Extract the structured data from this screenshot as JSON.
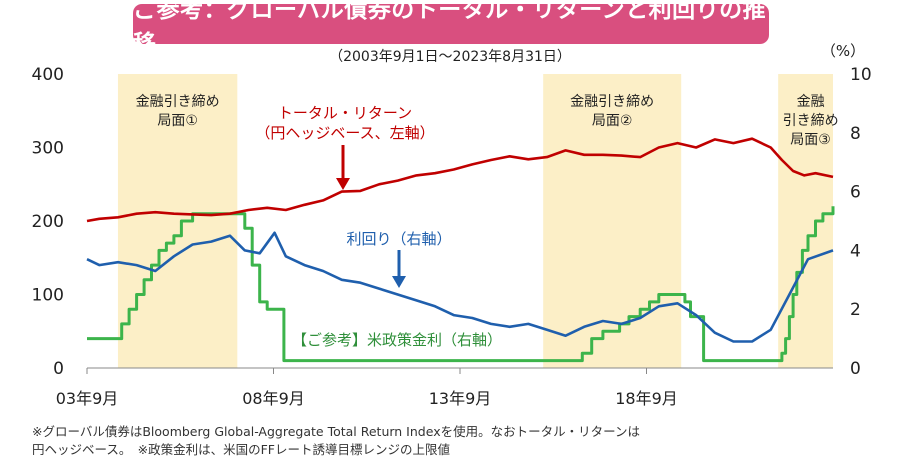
{
  "title": "ご参考：グローバル債券のトータル・リターンと利回りの推移",
  "subtitle": "（2003年9月1日～2023年8月31日）",
  "footnote_line1": "※グローバル債券はBloomberg Global-Aggregate Total Return Indexを使用。なおトータル・リターンは",
  "footnote_line2": "円ヘッジベース。　※政策金利は、米国のFFレート誘導目標レンジの上限値",
  "colors": {
    "total_return": "#c00000",
    "yield": "#1f5fad",
    "policy_rate": "#3cb44b",
    "shade": "#fcefc7",
    "title_bg": "#d94f7f"
  },
  "chart_data": {
    "type": "line",
    "left_axis": {
      "ylim": [
        0,
        400
      ],
      "ticks": [
        "0",
        "100",
        "200",
        "300",
        "400"
      ]
    },
    "right_axis": {
      "unit_label": "（%）",
      "ylim": [
        0,
        10
      ],
      "ticks": [
        "0",
        "2",
        "4",
        "6",
        "8",
        "10"
      ]
    },
    "x_axis": {
      "xlim": [
        2003.67,
        2023.67
      ],
      "ticks": [
        {
          "x": 2003.67,
          "label": "03年9月"
        },
        {
          "x": 2008.67,
          "label": "08年9月"
        },
        {
          "x": 2013.67,
          "label": "13年9月"
        },
        {
          "x": 2018.67,
          "label": "18年9月"
        }
      ]
    },
    "shaded_regions": [
      {
        "x0": 2004.5,
        "x1": 2007.7,
        "label": [
          "金融引き締め",
          "局面①"
        ]
      },
      {
        "x0": 2015.9,
        "x1": 2019.6,
        "label": [
          "金融引き締め",
          "局面②"
        ]
      },
      {
        "x0": 2022.2,
        "x1": 2023.67,
        "label": [
          "金融",
          "引き締め",
          "局面③"
        ]
      }
    ],
    "series": [
      {
        "name": "トータル・リターン（円ヘッジベース、左軸）",
        "key": "total_return",
        "axis": "left",
        "x": [
          2003.67,
          2004.0,
          2004.5,
          2005.0,
          2005.5,
          2006.0,
          2006.5,
          2007.0,
          2007.5,
          2008.0,
          2008.5,
          2009.0,
          2009.5,
          2010.0,
          2010.5,
          2011.0,
          2011.5,
          2012.0,
          2012.5,
          2013.0,
          2013.5,
          2014.0,
          2014.5,
          2015.0,
          2015.5,
          2016.0,
          2016.5,
          2017.0,
          2017.5,
          2018.0,
          2018.5,
          2019.0,
          2019.5,
          2020.0,
          2020.5,
          2021.0,
          2021.5,
          2022.0,
          2022.3,
          2022.6,
          2022.9,
          2023.2,
          2023.67
        ],
        "y": [
          200,
          203,
          205,
          210,
          212,
          210,
          209,
          208,
          210,
          215,
          218,
          215,
          222,
          228,
          240,
          241,
          250,
          255,
          262,
          265,
          270,
          277,
          283,
          288,
          284,
          287,
          296,
          290,
          290,
          289,
          287,
          300,
          306,
          300,
          311,
          306,
          312,
          300,
          283,
          268,
          262,
          265,
          260
        ]
      },
      {
        "name": "利回り（右軸）",
        "key": "yield",
        "axis": "right",
        "x": [
          2003.67,
          2004.0,
          2004.5,
          2005.0,
          2005.5,
          2006.0,
          2006.5,
          2007.0,
          2007.5,
          2007.9,
          2008.3,
          2008.7,
          2009.0,
          2009.5,
          2010.0,
          2010.5,
          2011.0,
          2011.5,
          2012.0,
          2012.5,
          2013.0,
          2013.5,
          2014.0,
          2014.5,
          2015.0,
          2015.5,
          2016.0,
          2016.5,
          2017.0,
          2017.5,
          2018.0,
          2018.5,
          2019.0,
          2019.5,
          2020.0,
          2020.5,
          2021.0,
          2021.5,
          2022.0,
          2022.5,
          2023.0,
          2023.67
        ],
        "y": [
          3.7,
          3.5,
          3.6,
          3.5,
          3.3,
          3.8,
          4.2,
          4.3,
          4.5,
          4.0,
          3.9,
          4.6,
          3.8,
          3.5,
          3.3,
          3.0,
          2.9,
          2.7,
          2.5,
          2.3,
          2.1,
          1.8,
          1.7,
          1.5,
          1.4,
          1.5,
          1.3,
          1.1,
          1.4,
          1.6,
          1.5,
          1.7,
          2.1,
          2.2,
          1.8,
          1.2,
          0.9,
          0.9,
          1.3,
          2.5,
          3.7,
          4.0
        ]
      },
      {
        "name": "【ご参考】米政策金利（右軸）",
        "key": "policy_rate",
        "axis": "right",
        "x": [
          2003.67,
          2004.5,
          2004.6,
          2004.8,
          2005.0,
          2005.2,
          2005.4,
          2005.6,
          2005.8,
          2006.0,
          2006.2,
          2006.5,
          2007.7,
          2007.9,
          2008.1,
          2008.3,
          2008.5,
          2008.95,
          2015.95,
          2016.95,
          2017.2,
          2017.5,
          2017.95,
          2018.2,
          2018.5,
          2018.75,
          2019.0,
          2019.55,
          2019.7,
          2019.85,
          2020.2,
          2022.2,
          2022.3,
          2022.4,
          2022.5,
          2022.6,
          2022.7,
          2022.85,
          2023.0,
          2023.2,
          2023.4,
          2023.67
        ],
        "y": [
          1.0,
          1.0,
          1.5,
          2.0,
          2.5,
          3.0,
          3.5,
          4.0,
          4.25,
          4.5,
          5.0,
          5.25,
          5.25,
          4.75,
          3.5,
          2.25,
          2.0,
          0.25,
          0.25,
          0.5,
          1.0,
          1.25,
          1.5,
          1.75,
          2.0,
          2.25,
          2.5,
          2.5,
          2.25,
          1.75,
          0.25,
          0.25,
          0.5,
          1.0,
          1.75,
          2.5,
          3.25,
          4.0,
          4.5,
          5.0,
          5.25,
          5.5
        ]
      }
    ],
    "annotations": [
      {
        "series": "total_return",
        "text": [
          "トータル・リターン",
          "（円ヘッジベース、左軸）"
        ]
      },
      {
        "series": "yield",
        "text": [
          "利回り（右軸）"
        ]
      },
      {
        "series": "policy_rate",
        "text": [
          "【ご参考】米政策金利（右軸）"
        ]
      }
    ]
  }
}
